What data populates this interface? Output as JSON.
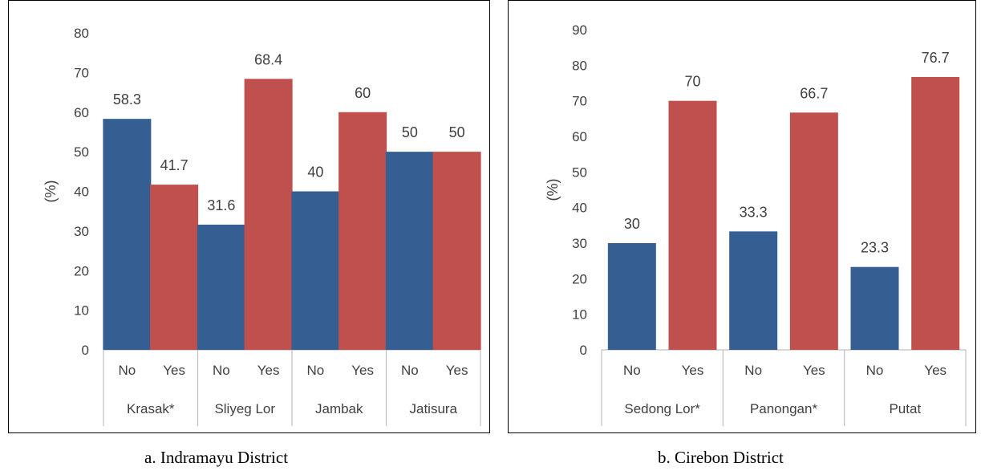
{
  "colors": {
    "no": "#355f93",
    "yes": "#c0504d",
    "text": "#404040",
    "axis": "#bfbfbf"
  },
  "chart_data": [
    {
      "type": "bar",
      "caption": "a.  Indramayu District",
      "ylabel": "(%)",
      "ylim": [
        0,
        80
      ],
      "yticks": [
        0,
        10,
        20,
        30,
        40,
        50,
        60,
        70,
        80
      ],
      "groups": [
        "Krasak*",
        "Sliyeg Lor",
        "Jambak",
        "Jatisura"
      ],
      "subcategories": [
        "No",
        "Yes"
      ],
      "series": [
        {
          "name": "No",
          "values": [
            58.3,
            31.6,
            40,
            50
          ]
        },
        {
          "name": "Yes",
          "values": [
            41.7,
            68.4,
            60,
            50
          ]
        }
      ],
      "data_labels": [
        [
          "58.3",
          "41.7"
        ],
        [
          "31.6",
          "68.4"
        ],
        [
          "40",
          "60"
        ],
        [
          "50",
          "50"
        ]
      ]
    },
    {
      "type": "bar",
      "caption": "b. Cirebon District",
      "ylabel": "(%)",
      "ylim": [
        0,
        90
      ],
      "yticks": [
        0,
        10,
        20,
        30,
        40,
        50,
        60,
        70,
        80,
        90
      ],
      "groups": [
        "Sedong Lor*",
        "Panongan*",
        "Putat"
      ],
      "subcategories": [
        "No",
        "Yes"
      ],
      "series": [
        {
          "name": "No",
          "values": [
            30,
            33.3,
            23.3
          ]
        },
        {
          "name": "Yes",
          "values": [
            70,
            66.7,
            76.7
          ]
        }
      ],
      "data_labels": [
        [
          "30",
          "70"
        ],
        [
          "33.3",
          "66.7"
        ],
        [
          "23.3",
          "76.7"
        ]
      ]
    }
  ]
}
